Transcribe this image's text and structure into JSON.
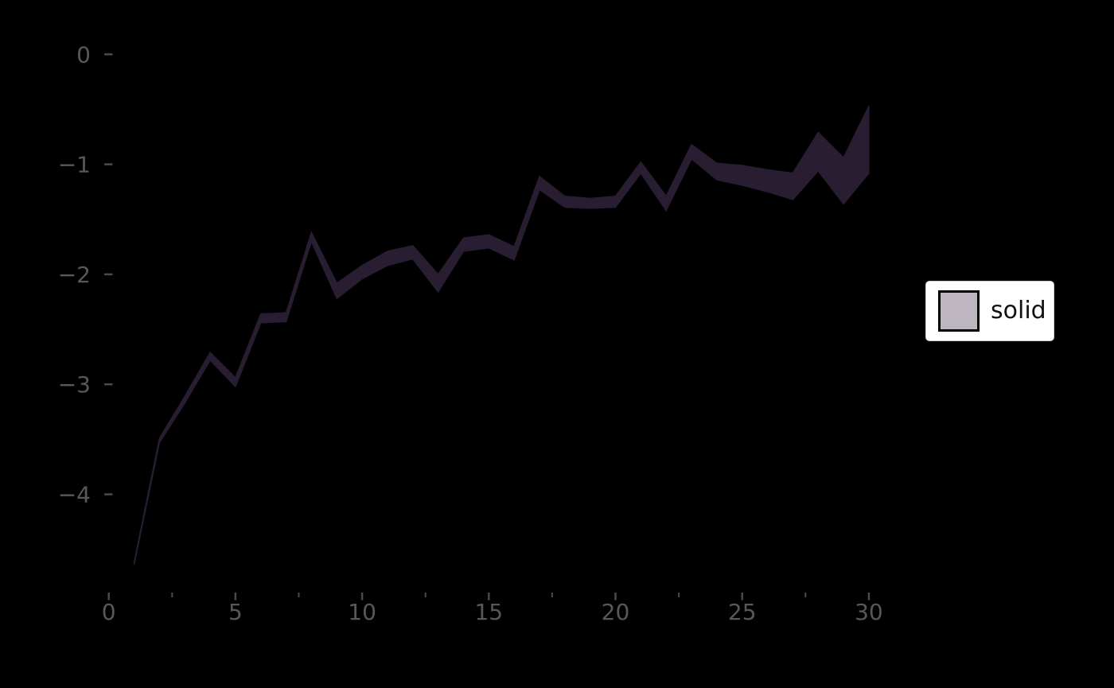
{
  "chart_data": {
    "type": "area",
    "title": "",
    "xlabel": "",
    "ylabel": "",
    "grid": false,
    "background": "#000000",
    "xlim": [
      -0.45,
      31.45
    ],
    "ylim": [
      -4.89,
      -0.21
    ],
    "x_tick_major_values": [
      0,
      5,
      10,
      15,
      20,
      25,
      30
    ],
    "x_tick_major_labels": [
      "0",
      "5",
      "10",
      "15",
      "20",
      "25",
      "30"
    ],
    "x_tick_minor_values": [
      2.5,
      7.5,
      12.5,
      17.5,
      22.5,
      27.5
    ],
    "y_tick_values": [
      0,
      -1,
      -2,
      -3,
      -4
    ],
    "y_tick_labels": [
      "0",
      "−1",
      "−2",
      "−3",
      "−4"
    ],
    "legend_position": "center-right",
    "series": [
      {
        "name": "solid",
        "x": [
          1,
          2,
          3,
          4,
          5,
          6,
          7,
          8,
          9,
          10,
          11,
          12,
          13,
          14,
          15,
          16,
          17,
          18,
          19,
          20,
          21,
          22,
          23,
          24,
          25,
          26,
          27,
          28,
          29,
          30
        ],
        "upper": [
          -4.62,
          -3.49,
          -3.11,
          -2.71,
          -2.94,
          -2.36,
          -2.35,
          -1.62,
          -2.08,
          -1.92,
          -1.79,
          -1.74,
          -2.0,
          -1.67,
          -1.64,
          -1.75,
          -1.11,
          -1.29,
          -1.31,
          -1.29,
          -0.98,
          -1.29,
          -0.82,
          -0.99,
          -1.01,
          -1.05,
          -1.08,
          -0.71,
          -0.94,
          -0.47
        ],
        "lower": [
          -4.64,
          -3.53,
          -3.17,
          -2.78,
          -3.02,
          -2.44,
          -2.43,
          -1.7,
          -2.22,
          -2.04,
          -1.92,
          -1.86,
          -2.16,
          -1.79,
          -1.76,
          -1.87,
          -1.23,
          -1.39,
          -1.4,
          -1.39,
          -1.08,
          -1.42,
          -0.95,
          -1.14,
          -1.19,
          -1.25,
          -1.32,
          -1.06,
          -1.36,
          -1.08
        ]
      }
    ]
  },
  "legend": {
    "label": "solid",
    "swatch_color": "#bdb6c1",
    "swatch_border_color": "#000000",
    "background": "#ffffff"
  },
  "colors": {
    "band_fill": "#281d31",
    "tick_mark": "#4a4a4a",
    "tick_label": "#585858",
    "legend_text": "#111111",
    "background": "#000000"
  }
}
